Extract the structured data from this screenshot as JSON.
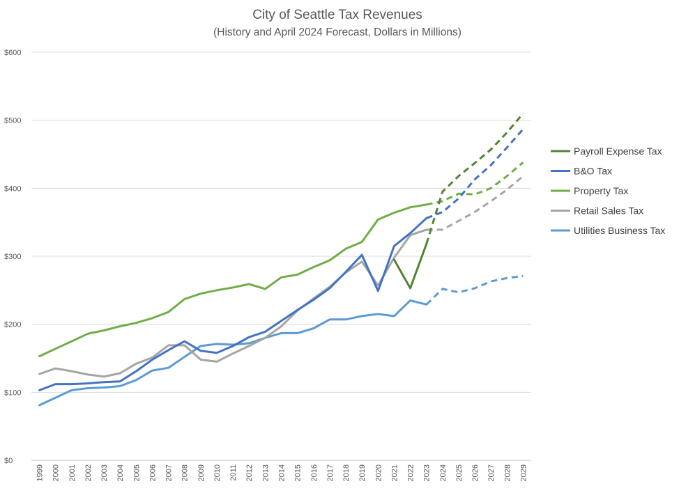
{
  "chart_data": {
    "type": "line",
    "title": "City of Seattle Tax Revenues",
    "subtitle": "(History and April 2024 Forecast, Dollars in Millions)",
    "x": [
      "1999",
      "2000",
      "2001",
      "2002",
      "2003",
      "2004",
      "2005",
      "2006",
      "2007",
      "2008",
      "2009",
      "2010",
      "2011",
      "2012",
      "2013",
      "2014",
      "2015",
      "2016",
      "2017",
      "2018",
      "2019",
      "2020",
      "2021",
      "2022",
      "2023",
      "2024",
      "2025",
      "2026",
      "2027",
      "2028",
      "2029"
    ],
    "ylim": [
      0,
      600
    ],
    "yticks": [
      0,
      100,
      200,
      300,
      400,
      500,
      600
    ],
    "ytick_labels": [
      "$0",
      "$100",
      "$200",
      "$300",
      "$400",
      "$500",
      "$600"
    ],
    "grid": true,
    "legend_position": "right",
    "history_end": "2023",
    "series": [
      {
        "name": "Payroll Expense Tax",
        "color": "#548235",
        "values": [
          null,
          null,
          null,
          null,
          null,
          null,
          null,
          null,
          null,
          null,
          null,
          null,
          null,
          null,
          null,
          null,
          null,
          null,
          null,
          null,
          null,
          null,
          295,
          253,
          318,
          395,
          418,
          437,
          457,
          482,
          510
        ]
      },
      {
        "name": "B&O Tax",
        "color": "#4472C4",
        "values": [
          103,
          112,
          112,
          113,
          115,
          116,
          131,
          148,
          162,
          175,
          161,
          158,
          168,
          181,
          189,
          205,
          221,
          236,
          253,
          277,
          302,
          249,
          315,
          334,
          356,
          365,
          385,
          413,
          434,
          460,
          487
        ]
      },
      {
        "name": "Property Tax",
        "color": "#70AD47",
        "values": [
          153,
          164,
          175,
          186,
          191,
          197,
          202,
          209,
          218,
          237,
          245,
          250,
          254,
          259,
          252,
          269,
          273,
          284,
          294,
          311,
          321,
          354,
          364,
          372,
          376,
          381,
          392,
          391,
          400,
          418,
          438
        ]
      },
      {
        "name": "Retail Sales Tax",
        "color": "#A5A5A5",
        "values": [
          127,
          135,
          131,
          126,
          123,
          128,
          142,
          151,
          169,
          169,
          148,
          145,
          157,
          168,
          180,
          197,
          220,
          238,
          255,
          276,
          292,
          257,
          298,
          331,
          339,
          339,
          352,
          365,
          381,
          398,
          418
        ]
      },
      {
        "name": "Utilities Business Tax",
        "color": "#5B9BD5",
        "values": [
          81,
          92,
          103,
          106,
          107,
          109,
          118,
          132,
          136,
          152,
          168,
          171,
          170,
          172,
          180,
          187,
          187,
          194,
          207,
          207,
          212,
          215,
          212,
          235,
          229,
          252,
          247,
          253,
          263,
          268,
          271
        ]
      }
    ]
  }
}
